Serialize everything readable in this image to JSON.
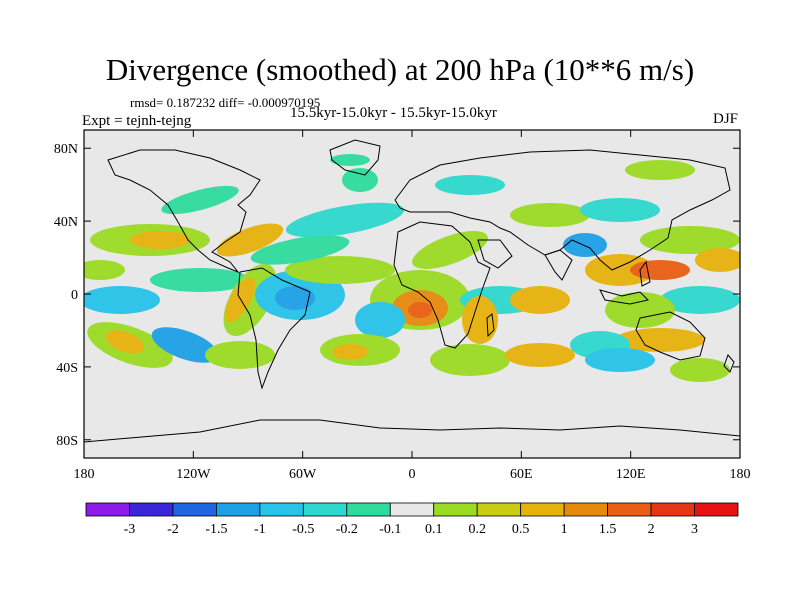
{
  "title": "Divergence (smoothed) at 200 hPa (10**6 m/s)",
  "stats": {
    "rmsd_label": "rmsd=",
    "rmsd": "0.187232",
    "diff_label": "diff=",
    "diff": "-0.000970195"
  },
  "stats_text": "rmsd= 0.187232 diff= -0.000970195",
  "period": "15.5kyr-15.0kyr - 15.5kyr-15.0kyr",
  "expt": "Expt = tejnh-tejng",
  "season": "DJF",
  "map": {
    "lon_ticks": [
      {
        "lon": -180,
        "label": "180"
      },
      {
        "lon": -120,
        "label": "120W"
      },
      {
        "lon": -60,
        "label": "60W"
      },
      {
        "lon": 0,
        "label": "0"
      },
      {
        "lon": 60,
        "label": "60E"
      },
      {
        "lon": 120,
        "label": "120E"
      },
      {
        "lon": 180,
        "label": "180"
      }
    ],
    "lat_ticks": [
      {
        "lat": 80,
        "label": "80N"
      },
      {
        "lat": 40,
        "label": "40N"
      },
      {
        "lat": 0,
        "label": "0"
      },
      {
        "lat": -40,
        "label": "40S"
      },
      {
        "lat": -80,
        "label": "80S"
      }
    ]
  },
  "colorbar": {
    "colors": [
      "#8c1be8",
      "#3a28d8",
      "#1c64e0",
      "#1ea0e6",
      "#27c3e8",
      "#2ed8cc",
      "#2fdc9e",
      "#e8e8e8",
      "#9bdb24",
      "#c8cc12",
      "#e6b20c",
      "#e68a0e",
      "#e85e14",
      "#e63514",
      "#e61212"
    ],
    "labels": [
      "-3",
      "-2",
      "-1.5",
      "-1",
      "-0.5",
      "-0.2",
      "-0.1",
      "0.1",
      "0.2",
      "0.5",
      "1",
      "1.5",
      "2",
      "3"
    ]
  }
}
